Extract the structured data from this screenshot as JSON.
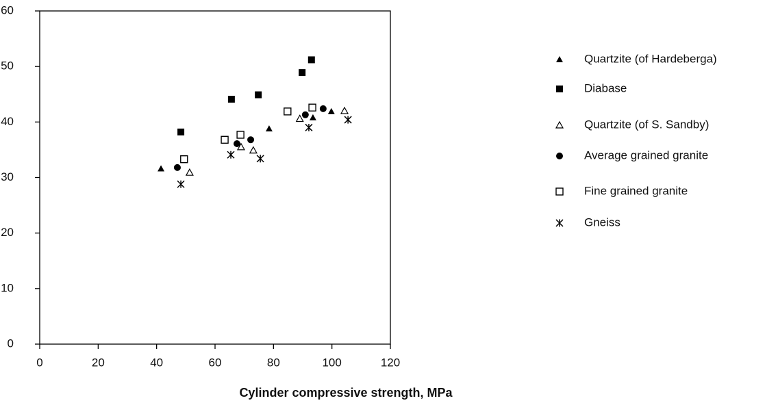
{
  "chart_data": {
    "type": "scatter",
    "x_label": "Cylinder compressive strength, MPa",
    "xlim": [
      0,
      120
    ],
    "xticks": [
      0,
      20,
      40,
      60,
      80,
      100,
      120
    ],
    "ylim": [
      0,
      60
    ],
    "yticks": [
      0,
      10,
      20,
      30,
      40,
      50,
      60
    ],
    "grid": false,
    "legend": "right",
    "series": [
      {
        "name": "Quartzite (of Hardeberga)",
        "color": "#000000",
        "marker": "triangle",
        "x": [
          41.5,
          78.5,
          93.5,
          99.8
        ],
        "values": [
          31.6,
          38.8,
          40.8,
          41.9
        ]
      },
      {
        "name": "Diabase",
        "color": "#000000",
        "marker": "square",
        "x": [
          48.3,
          65.6,
          74.8,
          89.8,
          93
        ],
        "values": [
          38.2,
          44.1,
          44.9,
          48.9,
          51.2
        ]
      },
      {
        "name": "Quartzite (of S. Sandby)",
        "color": "#000000",
        "marker": "triangle-open",
        "x": [
          51.3,
          68.9,
          73.1,
          89,
          104.3
        ],
        "values": [
          30.9,
          35.5,
          34.9,
          40.6,
          42
        ]
      },
      {
        "name": "Average grained granite",
        "color": "#000000",
        "marker": "circle",
        "x": [
          47.1,
          67.5,
          72.2,
          90.9,
          97
        ],
        "values": [
          31.8,
          36.1,
          36.8,
          41.3,
          42.4
        ]
      },
      {
        "name": "Fine grained granite",
        "color": "#000000",
        "marker": "square-open",
        "x": [
          49.4,
          63.3,
          68.7,
          84.8,
          93.3
        ],
        "values": [
          33.3,
          36.8,
          37.7,
          41.9,
          42.6
        ]
      },
      {
        "name": "Gneiss",
        "color": "#000000",
        "marker": "asterisk",
        "x": [
          48.3,
          65.4,
          75.5,
          92.1,
          105.5
        ],
        "values": [
          28.8,
          34.1,
          33.4,
          39,
          40.4
        ]
      }
    ]
  }
}
